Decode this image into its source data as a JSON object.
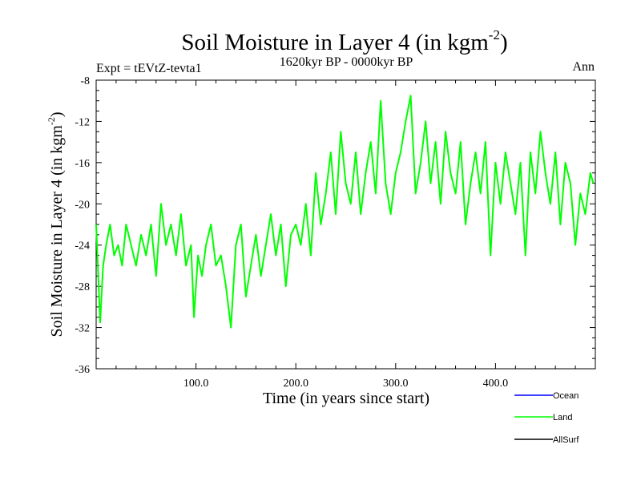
{
  "chart_data": {
    "type": "line",
    "title": "Soil Moisture in Layer 4 (in kgm",
    "title_sup": "-2",
    "title_close": ")",
    "subtitle_left": "Expt = tEVtZ-tevta1",
    "subtitle_center": "1620kyr BP - 0000kyr BP",
    "subtitle_right": "Ann",
    "xlabel": "Time (in years since start)",
    "ylabel": "Soil Moisture in Layer 4 (in kgm",
    "ylabel_sup": "-2",
    "ylabel_close": ")",
    "xlim": [
      0,
      500
    ],
    "ylim": [
      -36,
      -8
    ],
    "xticks": [
      100,
      200,
      300,
      400
    ],
    "xtick_labels": [
      "100.0",
      "200.0",
      "300.0",
      "400.0"
    ],
    "yticks": [
      -8,
      -12,
      -16,
      -20,
      -24,
      -28,
      -32,
      -36
    ],
    "ytick_labels": [
      "-8",
      "-12",
      "-16",
      "-20",
      "-24",
      "-28",
      "-32",
      "-36"
    ],
    "legend_position": "bottom-right",
    "series": [
      {
        "name": "Ocean",
        "color": "#0000ff",
        "values": []
      },
      {
        "name": "Land",
        "color": "#00ff00",
        "x": [
          0,
          4,
          7,
          10,
          14,
          18,
          22,
          26,
          30,
          35,
          40,
          45,
          50,
          55,
          60,
          65,
          70,
          75,
          80,
          85,
          90,
          95,
          98,
          102,
          106,
          110,
          115,
          120,
          125,
          130,
          135,
          140,
          145,
          150,
          155,
          160,
          165,
          170,
          175,
          180,
          185,
          190,
          195,
          200,
          205,
          210,
          215,
          220,
          225,
          230,
          235,
          240,
          245,
          250,
          255,
          260,
          265,
          270,
          275,
          280,
          285,
          290,
          295,
          300,
          305,
          310,
          315,
          320,
          325,
          330,
          335,
          340,
          345,
          350,
          355,
          360,
          365,
          370,
          375,
          380,
          385,
          390,
          395,
          400,
          405,
          410,
          415,
          420,
          425,
          430,
          435,
          440,
          445,
          450,
          455,
          460,
          465,
          470,
          475,
          480,
          485,
          490,
          495,
          498
        ],
        "values": [
          -22,
          -31.5,
          -26,
          -24,
          -22,
          -25,
          -24,
          -26,
          -22,
          -24,
          -26,
          -23,
          -25,
          -22,
          -27,
          -20,
          -24,
          -22,
          -25,
          -21,
          -26,
          -24,
          -31,
          -25,
          -27,
          -24,
          -22,
          -26,
          -25,
          -28,
          -32,
          -24,
          -22,
          -29,
          -26,
          -23,
          -27,
          -24,
          -21,
          -25,
          -22,
          -28,
          -23,
          -22,
          -24,
          -20,
          -25,
          -17,
          -22,
          -19,
          -15,
          -21,
          -13,
          -18,
          -20,
          -15,
          -21,
          -17,
          -14,
          -19,
          -10,
          -18,
          -21,
          -17,
          -15,
          -12,
          -9.5,
          -19,
          -16,
          -12,
          -18,
          -14,
          -20,
          -13,
          -17,
          -19,
          -14,
          -22,
          -18,
          -15,
          -19,
          -14,
          -25,
          -16,
          -20,
          -15,
          -18,
          -21,
          -16,
          -25,
          -15,
          -19,
          -13,
          -17,
          -20,
          -15,
          -22,
          -16,
          -18,
          -24,
          -19,
          -21,
          -17,
          -18
        ]
      },
      {
        "name": "AllSurf",
        "color": "#000000",
        "values": []
      }
    ]
  }
}
